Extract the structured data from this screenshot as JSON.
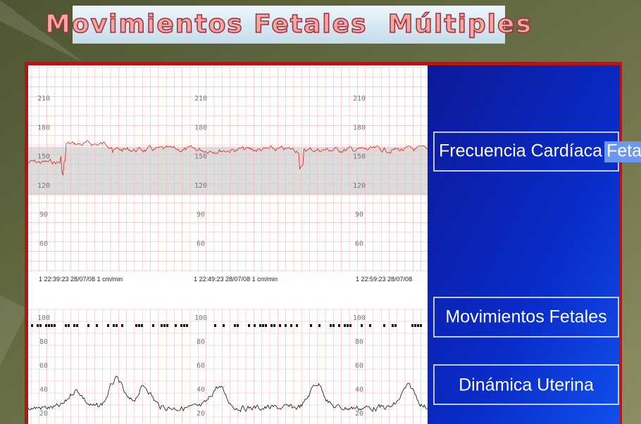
{
  "title": "Movimientos Fetales  Múltiples",
  "monitor": {
    "fhr_scale": [
      210,
      180,
      150,
      120,
      90,
      60
    ],
    "timestamps": [
      "1 22:39:23 28/07/08 1 cm/min",
      "1 22:49:23 28/07/08 1 cm/min",
      "1 22:59:23 28/07/08"
    ],
    "toco_scale": [
      100,
      80,
      60,
      40,
      20
    ]
  },
  "menu": {
    "items": [
      {
        "label": "Frecuencia Cardíaca",
        "highlight": "Fetal"
      },
      {
        "label": "Movimientos Fetales"
      },
      {
        "label": "Dinámica Uterina"
      }
    ]
  }
}
